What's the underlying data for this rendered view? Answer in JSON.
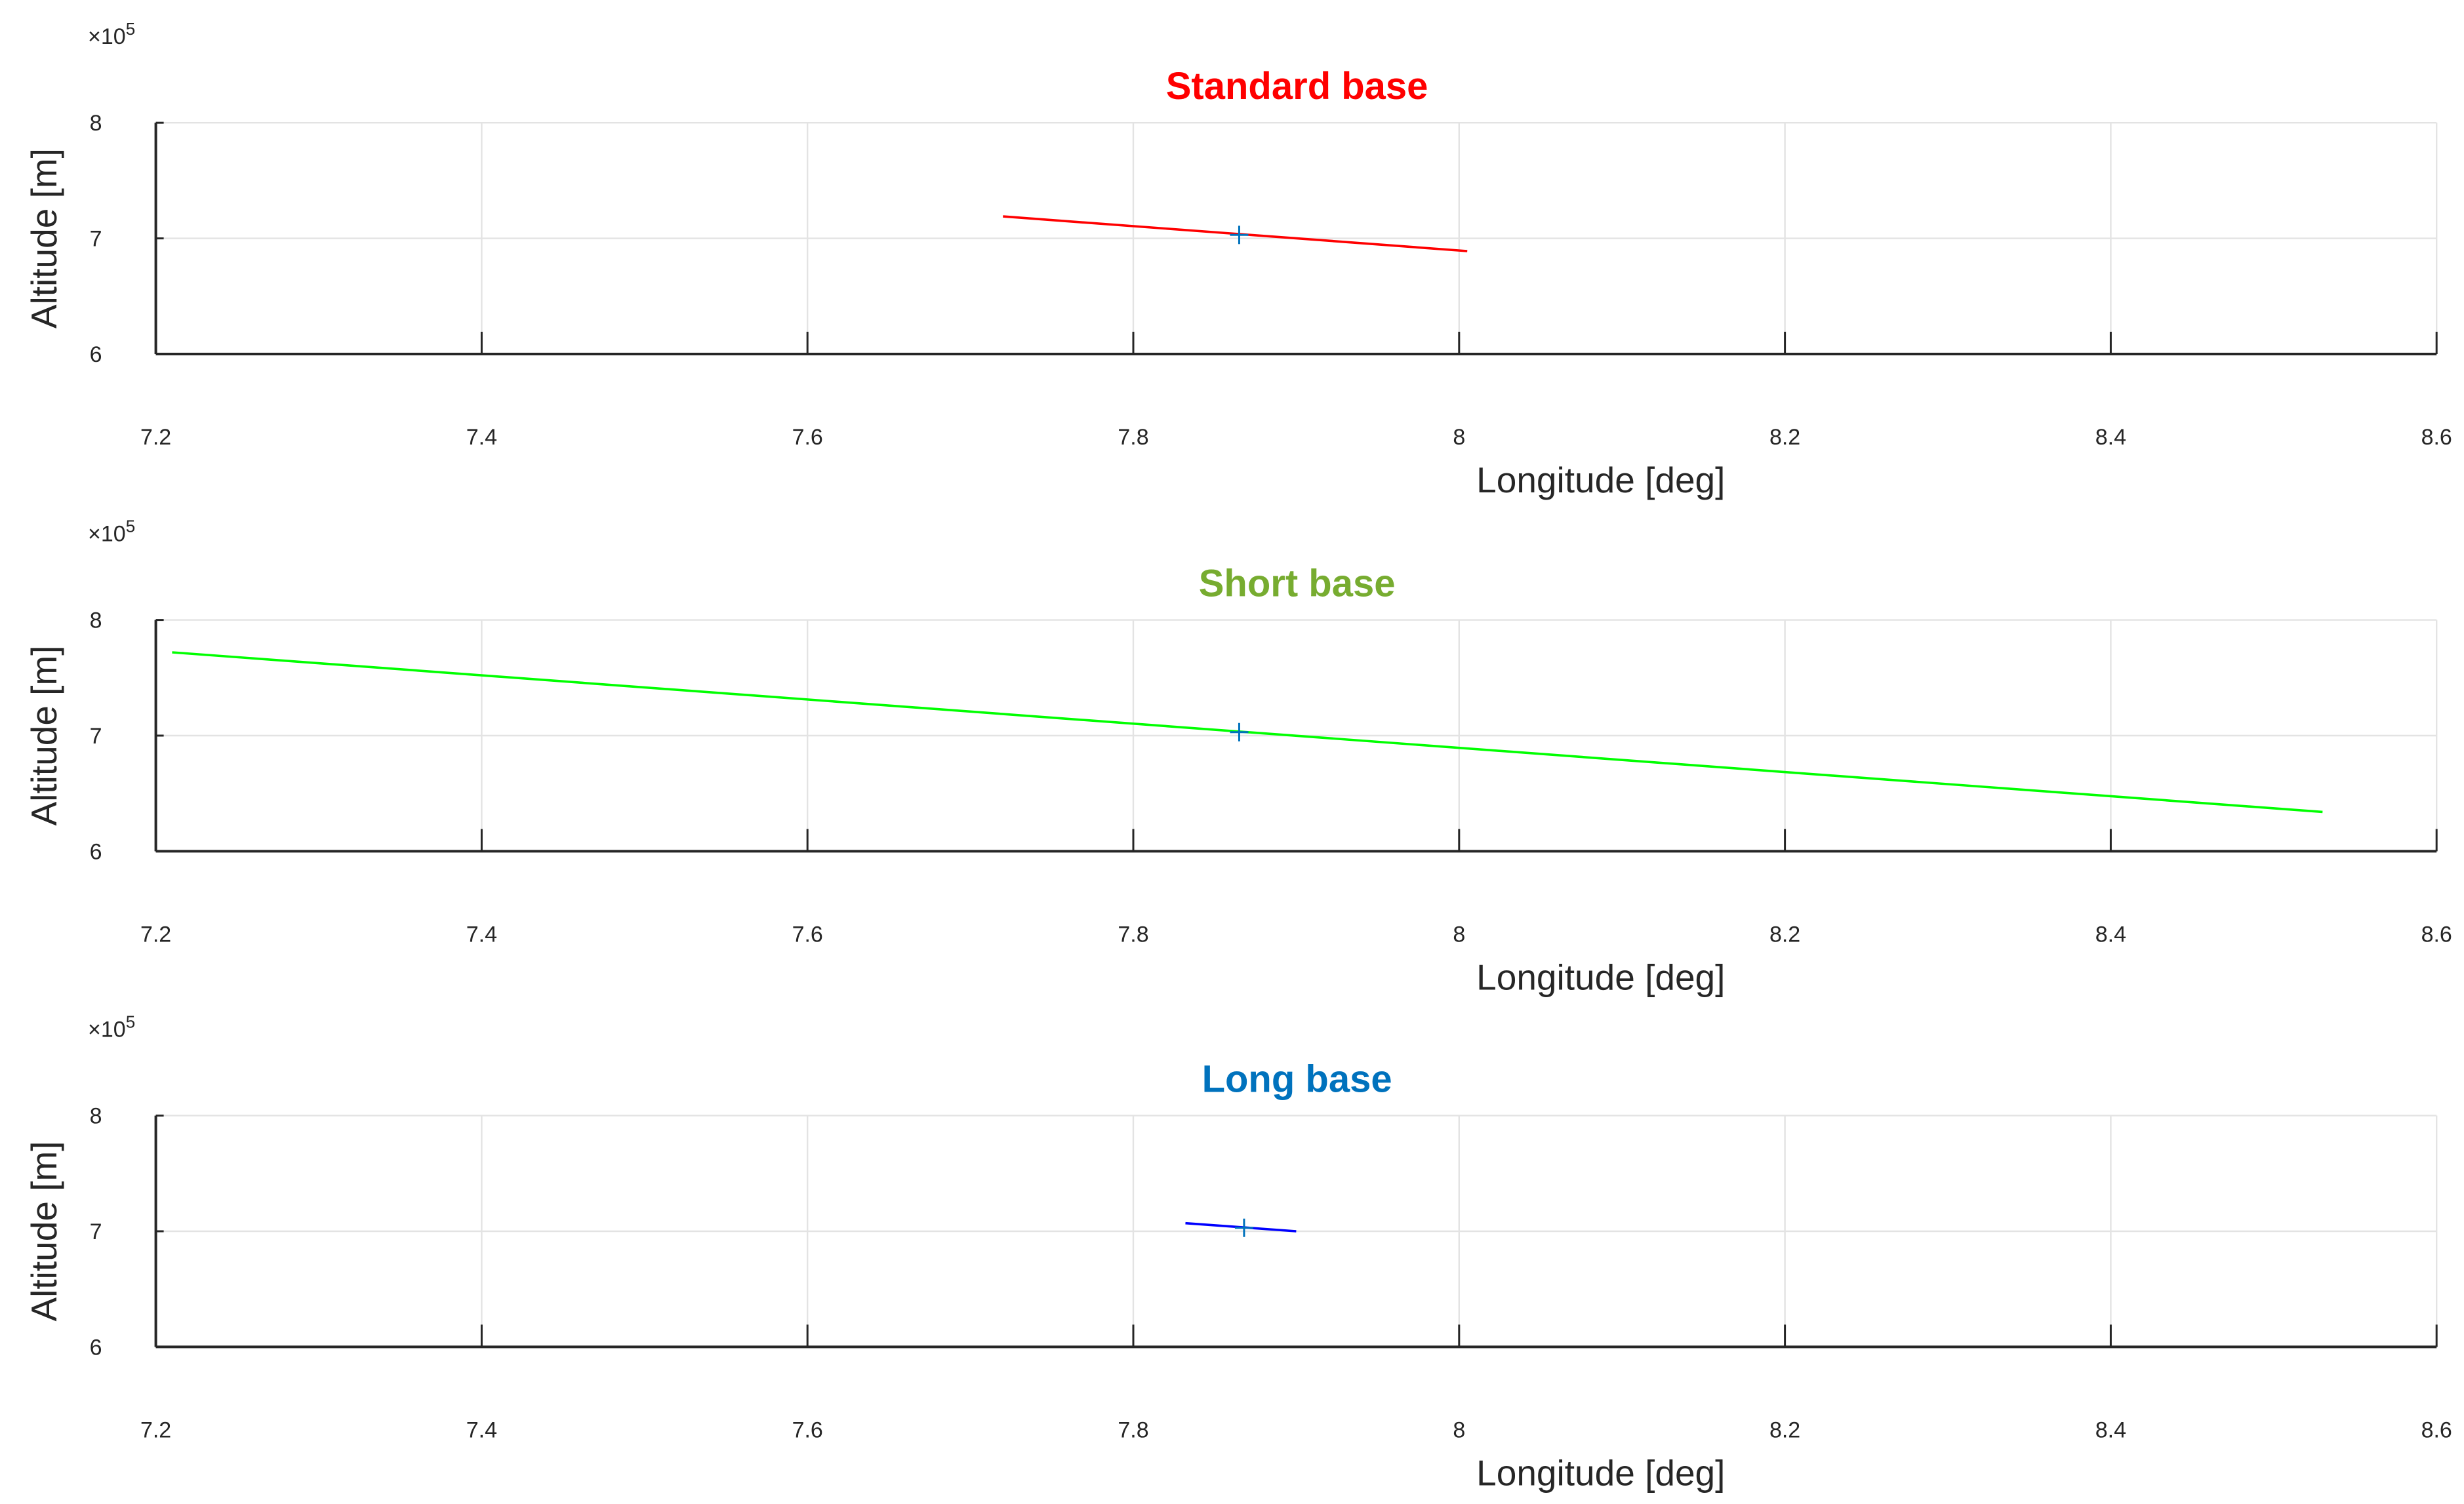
{
  "chart_data": [
    {
      "type": "line",
      "title": "Standard base",
      "title_color": "#ff0000",
      "xlabel": "Longitude [deg]",
      "ylabel": "Altitude [m]",
      "y_exponent_base": "×10",
      "y_exponent_power": "5",
      "xlim": [
        7.2,
        8.6
      ],
      "ylim": [
        6,
        8
      ],
      "x_ticks": [
        7.2,
        7.4,
        7.6,
        7.8,
        8,
        8.2,
        8.4,
        8.6
      ],
      "x_tick_labels": [
        "7.2",
        "7.4",
        "7.6",
        "7.8",
        "8",
        "8.2",
        "8.4",
        "8.6"
      ],
      "y_ticks": [
        6,
        7,
        8
      ],
      "y_tick_labels": [
        "6",
        "7",
        "8"
      ],
      "grid": true,
      "series": [
        {
          "color": "#ff0000",
          "x": [
            7.72,
            8.005
          ],
          "y": [
            7.19,
            6.89
          ]
        }
      ],
      "marker": {
        "symbol": "+",
        "color": "#0072bd",
        "x": 7.865,
        "y": 7.03
      }
    },
    {
      "type": "line",
      "title": "Short base",
      "title_color": "#77ac30",
      "xlabel": "Longitude [deg]",
      "ylabel": "Altitude [m]",
      "y_exponent_base": "×10",
      "y_exponent_power": "5",
      "xlim": [
        7.2,
        8.6
      ],
      "ylim": [
        6,
        8
      ],
      "x_ticks": [
        7.2,
        7.4,
        7.6,
        7.8,
        8,
        8.2,
        8.4,
        8.6
      ],
      "x_tick_labels": [
        "7.2",
        "7.4",
        "7.6",
        "7.8",
        "8",
        "8.2",
        "8.4",
        "8.6"
      ],
      "y_ticks": [
        6,
        7,
        8
      ],
      "y_tick_labels": [
        "6",
        "7",
        "8"
      ],
      "grid": true,
      "series": [
        {
          "color": "#00ff00",
          "x": [
            7.21,
            8.53
          ],
          "y": [
            7.72,
            6.34
          ]
        }
      ],
      "marker": {
        "symbol": "+",
        "color": "#0072bd",
        "x": 7.865,
        "y": 7.03
      }
    },
    {
      "type": "line",
      "title": "Long base",
      "title_color": "#0072bd",
      "xlabel": "Longitude [deg]",
      "ylabel": "Altitude [m]",
      "y_exponent_base": "×10",
      "y_exponent_power": "5",
      "xlim": [
        7.2,
        8.6
      ],
      "ylim": [
        6,
        8
      ],
      "x_ticks": [
        7.2,
        7.4,
        7.6,
        7.8,
        8,
        8.2,
        8.4,
        8.6
      ],
      "x_tick_labels": [
        "7.2",
        "7.4",
        "7.6",
        "7.8",
        "8",
        "8.2",
        "8.4",
        "8.6"
      ],
      "y_ticks": [
        6,
        7,
        8
      ],
      "y_tick_labels": [
        "6",
        "7",
        "8"
      ],
      "grid": true,
      "series": [
        {
          "color": "#0000ff",
          "x": [
            7.832,
            7.9
          ],
          "y": [
            7.07,
            7.0
          ]
        }
      ],
      "marker": {
        "symbol": "+",
        "color": "#0072bd",
        "x": 7.868,
        "y": 7.03
      }
    }
  ]
}
